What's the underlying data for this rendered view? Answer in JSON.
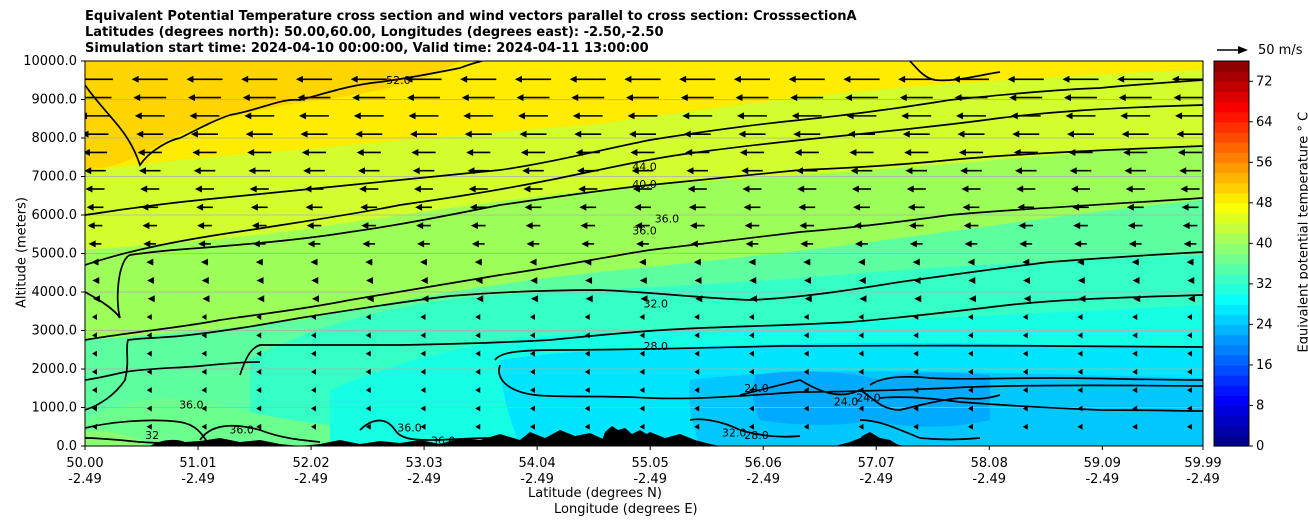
{
  "title_lines": [
    "Equivalent Potential Temperature cross section and wind vectors parallel to cross section: CrosssectionA",
    "Latitudes (degrees north): 50.00,60.00, Longitudes (degrees east): -2.50,-2.50",
    "Simulation start time: 2024-04-10 00:00:00, Valid time: 2024-04-11 13:00:00"
  ],
  "chart_data": {
    "type": "contourf",
    "title": "Equivalent Potential Temperature cross section and wind vectors parallel to cross section: CrosssectionA",
    "ylabel": "Altitude (meters)",
    "xlabel_lines": [
      "Latitude (degrees N)",
      "Longitude (degrees E)"
    ],
    "ylim": [
      0,
      10000
    ],
    "yticks": [
      "0.0",
      "1000.0",
      "2000.0",
      "3000.0",
      "4000.0",
      "5000.0",
      "6000.0",
      "7000.0",
      "8000.0",
      "9000.0",
      "10000.0"
    ],
    "xticks": [
      {
        "lat": "50.00",
        "lon": "-2.49"
      },
      {
        "lat": "51.01",
        "lon": "-2.49"
      },
      {
        "lat": "52.02",
        "lon": "-2.49"
      },
      {
        "lat": "53.03",
        "lon": "-2.49"
      },
      {
        "lat": "54.04",
        "lon": "-2.49"
      },
      {
        "lat": "55.05",
        "lon": "-2.49"
      },
      {
        "lat": "56.06",
        "lon": "-2.49"
      },
      {
        "lat": "57.07",
        "lon": "-2.49"
      },
      {
        "lat": "58.08",
        "lon": "-2.49"
      },
      {
        "lat": "59.09",
        "lon": "-2.49"
      },
      {
        "lat": "59.99",
        "lon": "-2.49"
      }
    ],
    "colorbar": {
      "label": "Equivalent potential temperature $^\\circ$C",
      "label_text": "Equivalent potential temperature ° C",
      "range": [
        0,
        76
      ],
      "ticks": [
        "0",
        "8",
        "16",
        "24",
        "32",
        "40",
        "48",
        "56",
        "64",
        "72"
      ]
    },
    "contour_labels": [
      {
        "text": "52.0",
        "lat": 52.8,
        "alt": 9400
      },
      {
        "text": "44.0",
        "lat": 55.0,
        "alt": 7150
      },
      {
        "text": "40.0",
        "lat": 55.0,
        "alt": 6700
      },
      {
        "text": "36.0",
        "lat": 55.2,
        "alt": 5800
      },
      {
        "text": "36.0",
        "lat": 55.0,
        "alt": 5500
      },
      {
        "text": "32.0",
        "lat": 55.1,
        "alt": 3600
      },
      {
        "text": "28.0",
        "lat": 55.1,
        "alt": 2500
      },
      {
        "text": "24.0",
        "lat": 56.0,
        "alt": 1400
      },
      {
        "text": "24.0",
        "lat": 57.0,
        "alt": 1150
      },
      {
        "text": "24.0",
        "lat": 56.8,
        "alt": 1050
      },
      {
        "text": "36.0",
        "lat": 50.95,
        "alt": 980
      },
      {
        "text": "32",
        "lat": 50.6,
        "alt": 180
      },
      {
        "text": "36.0",
        "lat": 51.4,
        "alt": 320
      },
      {
        "text": "36.0",
        "lat": 52.9,
        "alt": 380
      },
      {
        "text": "36.0",
        "lat": 53.2,
        "alt": 40
      },
      {
        "text": "32.0",
        "lat": 55.8,
        "alt": 250
      },
      {
        "text": "28.0",
        "lat": 56.0,
        "alt": 180
      }
    ],
    "wind_reference": {
      "label": "50 m/s",
      "speed": 50
    }
  }
}
